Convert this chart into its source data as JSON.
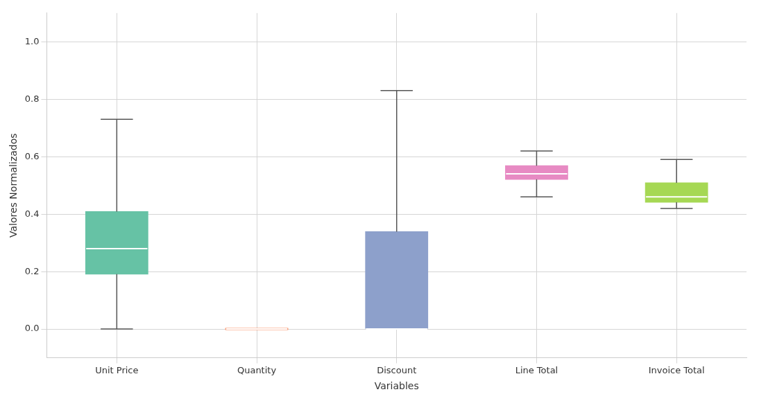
{
  "chart_data": {
    "type": "box",
    "xlabel": "Variables",
    "ylabel": "Valores Normalizados",
    "categories": [
      "Unit Price",
      "Quantity",
      "Discount",
      "Line Total",
      "Invoice Total"
    ],
    "colors": [
      "#66c2a5",
      "#fc8d62",
      "#8da0cb",
      "#e78ac3",
      "#a6d854"
    ],
    "boxes": [
      {
        "low": 0,
        "q1": 0.19,
        "median": 0.28,
        "q3": 0.41,
        "high": 0.73
      },
      {
        "low": 0,
        "q1": 0,
        "median": 0,
        "q3": 0,
        "high": 0
      },
      {
        "low": 0,
        "q1": 0,
        "median": 0,
        "q3": 0.34,
        "high": 0.83
      },
      {
        "low": 0.46,
        "q1": 0.52,
        "median": 0.54,
        "q3": 0.57,
        "high": 0.62
      },
      {
        "low": 0.42,
        "q1": 0.44,
        "median": 0.46,
        "q3": 0.51,
        "high": 0.59
      }
    ],
    "ylim": [
      -0.1,
      1.1
    ],
    "yticks": [
      {
        "value": 0,
        "label": "0.0"
      },
      {
        "value": 0.2,
        "label": "0.2"
      },
      {
        "value": 0.4,
        "label": "0.4"
      },
      {
        "value": 0.6,
        "label": "0.6"
      },
      {
        "value": 0.8,
        "label": "0.8"
      },
      {
        "value": 1,
        "label": "1.0"
      }
    ],
    "grid": true
  }
}
